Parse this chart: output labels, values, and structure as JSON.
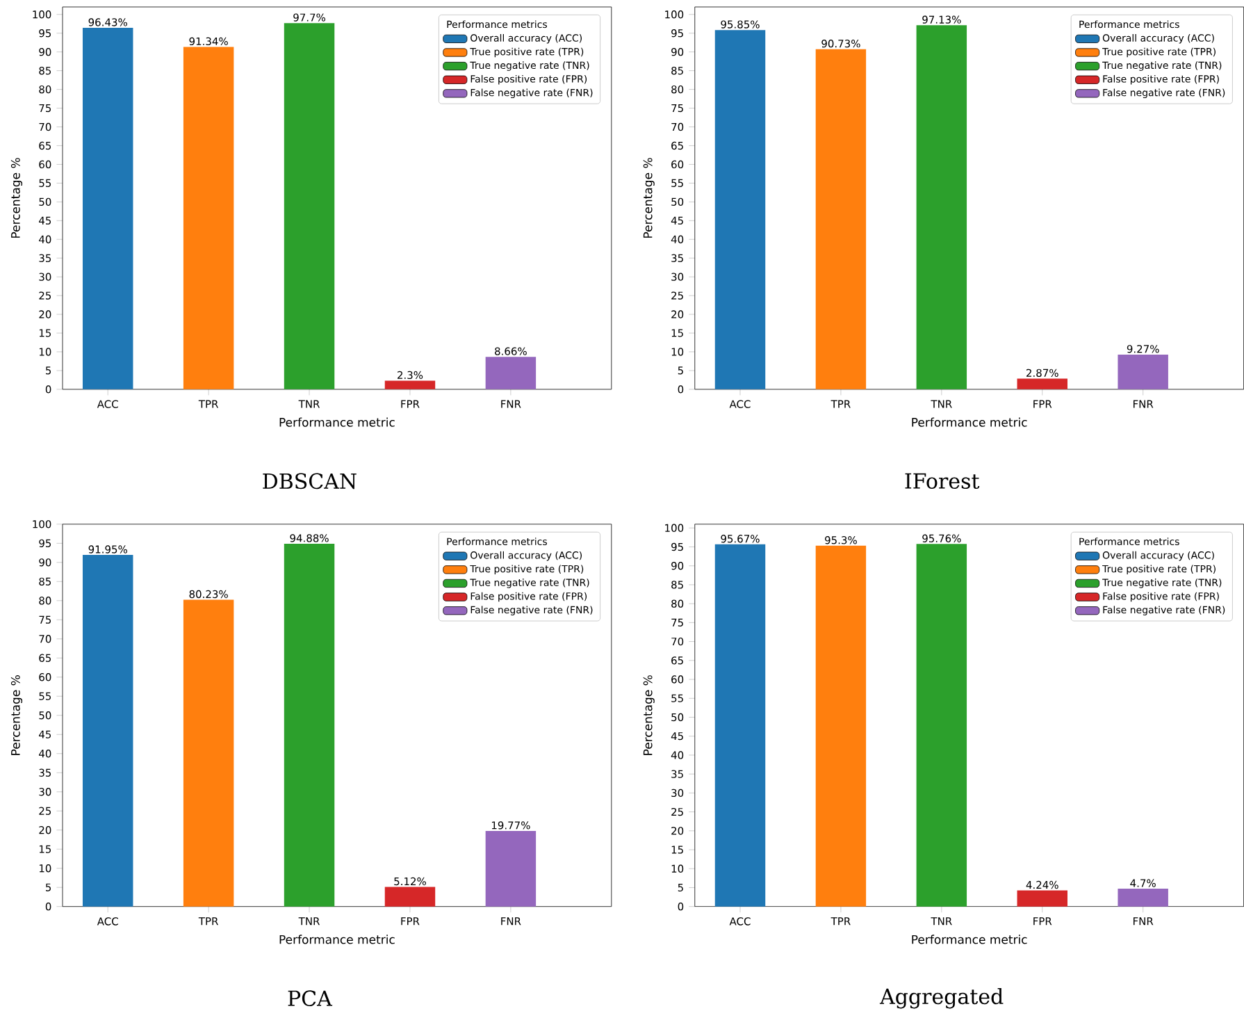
{
  "chart_data": [
    {
      "type": "bar",
      "title": "DBSCAN",
      "xlabel": "Performance metric",
      "ylabel": "Percentage %",
      "legend_title": "Performance metrics",
      "legend": "top right",
      "categories": [
        "ACC",
        "TPR",
        "TNR",
        "FPR",
        "FNR"
      ],
      "ylim": [
        0,
        102
      ],
      "yticks": [
        0,
        5,
        10,
        15,
        20,
        25,
        30,
        35,
        40,
        45,
        50,
        55,
        60,
        65,
        70,
        75,
        80,
        85,
        90,
        95,
        100
      ],
      "series": [
        {
          "name": "Overall accuracy (ACC)",
          "color": "#1f77b4",
          "values": [
            96.43,
            null,
            null,
            null,
            null
          ],
          "value_labels": [
            "96.43%",
            null,
            null,
            null,
            null
          ]
        },
        {
          "name": "True positive rate (TPR)",
          "color": "#ff7f0e",
          "values": [
            null,
            91.34,
            null,
            null,
            null
          ],
          "value_labels": [
            null,
            "91.34%",
            null,
            null,
            null
          ]
        },
        {
          "name": "True negative rate (TNR)",
          "color": "#2ca02c",
          "values": [
            null,
            null,
            97.7,
            null,
            null
          ],
          "value_labels": [
            null,
            null,
            "97.7%",
            null,
            null
          ]
        },
        {
          "name": "False positive rate (FPR)",
          "color": "#d62728",
          "values": [
            null,
            null,
            null,
            2.3,
            null
          ],
          "value_labels": [
            null,
            null,
            null,
            "2.3%",
            null
          ]
        },
        {
          "name": "False negative rate (FNR)",
          "color": "#9467bd",
          "values": [
            null,
            null,
            null,
            null,
            8.66
          ],
          "value_labels": [
            null,
            null,
            null,
            null,
            "8.66%"
          ]
        }
      ]
    },
    {
      "type": "bar",
      "title": "IForest",
      "xlabel": "Performance metric",
      "ylabel": "Percentage %",
      "legend_title": "Performance metrics",
      "legend": "top right",
      "categories": [
        "ACC",
        "TPR",
        "TNR",
        "FPR",
        "FNR"
      ],
      "ylim": [
        0,
        102
      ],
      "yticks": [
        0,
        5,
        10,
        15,
        20,
        25,
        30,
        35,
        40,
        45,
        50,
        55,
        60,
        65,
        70,
        75,
        80,
        85,
        90,
        95,
        100
      ],
      "series": [
        {
          "name": "Overall accuracy (ACC)",
          "color": "#1f77b4",
          "values": [
            95.85,
            null,
            null,
            null,
            null
          ],
          "value_labels": [
            "95.85%",
            null,
            null,
            null,
            null
          ]
        },
        {
          "name": "True positive rate (TPR)",
          "color": "#ff7f0e",
          "values": [
            null,
            90.73,
            null,
            null,
            null
          ],
          "value_labels": [
            null,
            "90.73%",
            null,
            null,
            null
          ]
        },
        {
          "name": "True negative rate (TNR)",
          "color": "#2ca02c",
          "values": [
            null,
            null,
            97.13,
            null,
            null
          ],
          "value_labels": [
            null,
            null,
            "97.13%",
            null,
            null
          ]
        },
        {
          "name": "False positive rate (FPR)",
          "color": "#d62728",
          "values": [
            null,
            null,
            null,
            2.87,
            null
          ],
          "value_labels": [
            null,
            null,
            null,
            "2.87%",
            null
          ]
        },
        {
          "name": "False negative rate (FNR)",
          "color": "#9467bd",
          "values": [
            null,
            null,
            null,
            null,
            9.27
          ],
          "value_labels": [
            null,
            null,
            null,
            null,
            "9.27%"
          ]
        }
      ]
    },
    {
      "type": "bar",
      "title": "PCA",
      "xlabel": "Performance metric",
      "ylabel": "Percentage %",
      "legend_title": "Performance metrics",
      "legend": "top right",
      "categories": [
        "ACC",
        "TPR",
        "TNR",
        "FPR",
        "FNR"
      ],
      "ylim": [
        0,
        100
      ],
      "yticks": [
        0,
        5,
        10,
        15,
        20,
        25,
        30,
        35,
        40,
        45,
        50,
        55,
        60,
        65,
        70,
        75,
        80,
        85,
        90,
        95,
        100
      ],
      "series": [
        {
          "name": "Overall accuracy (ACC)",
          "color": "#1f77b4",
          "values": [
            91.95,
            null,
            null,
            null,
            null
          ],
          "value_labels": [
            "91.95%",
            null,
            null,
            null,
            null
          ]
        },
        {
          "name": "True positive rate (TPR)",
          "color": "#ff7f0e",
          "values": [
            null,
            80.23,
            null,
            null,
            null
          ],
          "value_labels": [
            null,
            "80.23%",
            null,
            null,
            null
          ]
        },
        {
          "name": "True negative rate (TNR)",
          "color": "#2ca02c",
          "values": [
            null,
            null,
            94.88,
            null,
            null
          ],
          "value_labels": [
            null,
            null,
            "94.88%",
            null,
            null
          ]
        },
        {
          "name": "False positive rate (FPR)",
          "color": "#d62728",
          "values": [
            null,
            null,
            null,
            5.12,
            null
          ],
          "value_labels": [
            null,
            null,
            null,
            "5.12%",
            null
          ]
        },
        {
          "name": "False negative rate (FNR)",
          "color": "#9467bd",
          "values": [
            null,
            null,
            null,
            null,
            19.77
          ],
          "value_labels": [
            null,
            null,
            null,
            null,
            "19.77%"
          ]
        }
      ]
    },
    {
      "type": "bar",
      "title": "Aggregated",
      "xlabel": "Performance metric",
      "ylabel": "Percentage %",
      "legend_title": "Performance metrics",
      "legend": "top right",
      "categories": [
        "ACC",
        "TPR",
        "TNR",
        "FPR",
        "FNR"
      ],
      "ylim": [
        0,
        101
      ],
      "yticks": [
        0,
        5,
        10,
        15,
        20,
        25,
        30,
        35,
        40,
        45,
        50,
        55,
        60,
        65,
        70,
        75,
        80,
        85,
        90,
        95,
        100
      ],
      "series": [
        {
          "name": "Overall accuracy (ACC)",
          "color": "#1f77b4",
          "values": [
            95.67,
            null,
            null,
            null,
            null
          ],
          "value_labels": [
            "95.67%",
            null,
            null,
            null,
            null
          ]
        },
        {
          "name": "True positive rate (TPR)",
          "color": "#ff7f0e",
          "values": [
            null,
            95.3,
            null,
            null,
            null
          ],
          "value_labels": [
            null,
            "95.3%",
            null,
            null,
            null
          ]
        },
        {
          "name": "True negative rate (TNR)",
          "color": "#2ca02c",
          "values": [
            null,
            null,
            95.76,
            null,
            null
          ],
          "value_labels": [
            null,
            null,
            "95.76%",
            null,
            null
          ]
        },
        {
          "name": "False positive rate (FPR)",
          "color": "#d62728",
          "values": [
            null,
            null,
            null,
            4.24,
            null
          ],
          "value_labels": [
            null,
            null,
            null,
            "4.24%",
            null
          ]
        },
        {
          "name": "False negative rate (FNR)",
          "color": "#9467bd",
          "values": [
            null,
            null,
            null,
            null,
            4.7
          ],
          "value_labels": [
            null,
            null,
            null,
            null,
            "4.7%"
          ]
        }
      ]
    }
  ]
}
